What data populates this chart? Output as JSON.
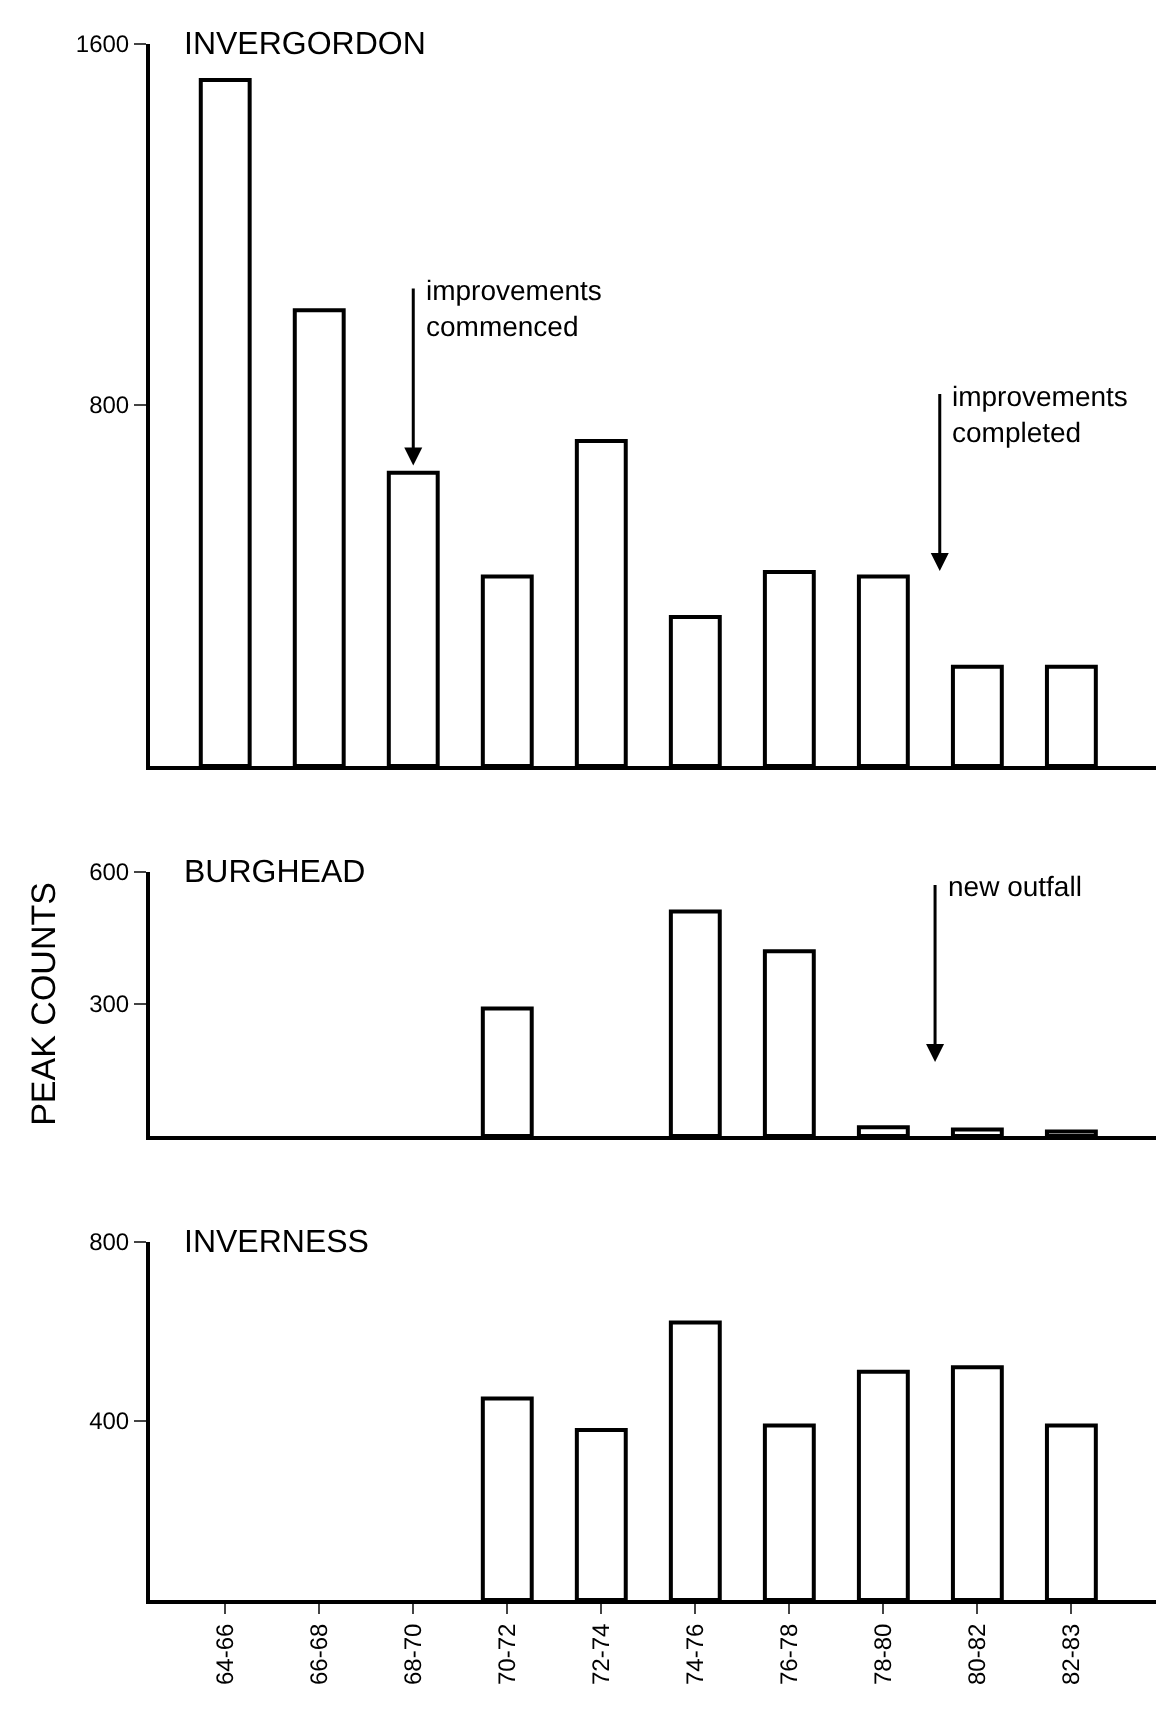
{
  "chart_data": [
    {
      "type": "bar",
      "title": "INVERGORDON",
      "categories": [
        "64-66",
        "66-68",
        "68-70",
        "70-72",
        "72-74",
        "74-76",
        "76-78",
        "78-80",
        "80-82",
        "82-83"
      ],
      "values": [
        1520,
        1010,
        650,
        420,
        720,
        330,
        430,
        420,
        220,
        220
      ],
      "color": "#ffffff",
      "ylim": [
        0,
        1600
      ],
      "yticks": [
        800,
        1600
      ],
      "tick_labels": "y",
      "annotations": [
        {
          "text": "improvements\ncommenced",
          "x": "68-70",
          "y": 650
        },
        "improvements\ncompleted"
      ]
    },
    {
      "type": "bar",
      "title": "BURGHEAD",
      "ylabel": "PEAK COUNTS",
      "categories": [
        "64-66",
        "66-68",
        "68-70",
        "70-72",
        "72-74",
        "74-76",
        "76-78",
        "78-80",
        "80-82",
        "82-83"
      ],
      "values": [
        null,
        null,
        null,
        290,
        null,
        510,
        420,
        20,
        15,
        10
      ],
      "color": "#ffffff",
      "ylim": [
        0,
        600
      ],
      "yticks": [
        300,
        600
      ],
      "tick_labels": "y",
      "annotations": [
        "new outfall"
      ]
    },
    {
      "type": "bar",
      "title": "INVERNESS",
      "categories": [
        "64-66",
        "66-68",
        "68-70",
        "70-72",
        "72-74",
        "74-76",
        "76-78",
        "78-80",
        "80-82",
        "82-83"
      ],
      "values": [
        null,
        null,
        null,
        450,
        380,
        620,
        390,
        510,
        520,
        390
      ],
      "color": "#ffffff",
      "ylim": [
        0,
        800
      ],
      "yticks": [
        400,
        800
      ]
    }
  ]
}
